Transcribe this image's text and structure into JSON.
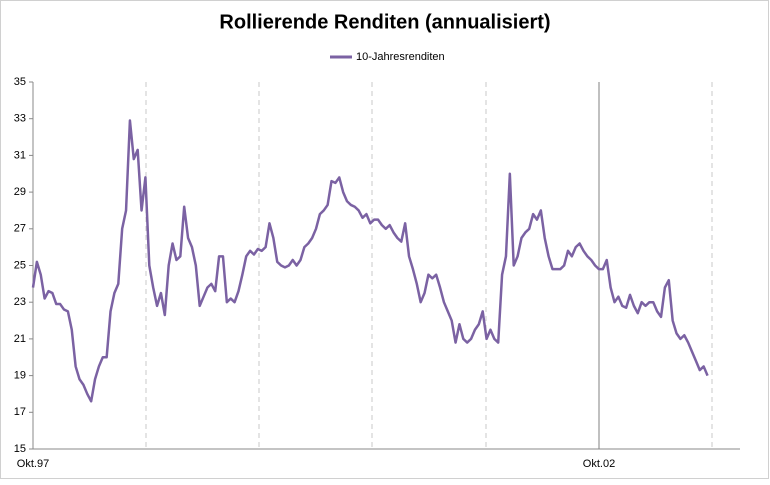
{
  "chart_data": {
    "type": "line",
    "title": "Rollierende Renditen (annualisiert)",
    "categories": [
      "Okt.97",
      null,
      null,
      null,
      null,
      null,
      null,
      null,
      null,
      null,
      null,
      null,
      null,
      null,
      null,
      null,
      null,
      null,
      null,
      null,
      null,
      null,
      null,
      null,
      null,
      null,
      null,
      null,
      null,
      null,
      null,
      null,
      null,
      null,
      null,
      null,
      null,
      null,
      null,
      null,
      null,
      null,
      null,
      null,
      null,
      null,
      null,
      null,
      null,
      null,
      null,
      null,
      null,
      null,
      null,
      null,
      null,
      null,
      null,
      null,
      null,
      null,
      null,
      null,
      null,
      null,
      null,
      null,
      null,
      null,
      null,
      null,
      null,
      null,
      null,
      null,
      null,
      null,
      null,
      null,
      null,
      null,
      null,
      null,
      null,
      null,
      null,
      null,
      null,
      null,
      null,
      null,
      null,
      null,
      null,
      null,
      null,
      null,
      null,
      null,
      null,
      null,
      null,
      null,
      null,
      null,
      null,
      null,
      null,
      null,
      null,
      null,
      null,
      null,
      null,
      null,
      null,
      null,
      null,
      null,
      null,
      null,
      null,
      null,
      null,
      null,
      null,
      null,
      null,
      null,
      null,
      null,
      null,
      null,
      null,
      null,
      null,
      null,
      null,
      null,
      null,
      null,
      null,
      null,
      null,
      null,
      "Okt.02",
      null,
      null,
      null,
      null,
      null,
      null,
      null,
      null,
      null,
      null,
      null,
      null,
      null,
      null,
      null,
      null,
      null,
      null,
      null,
      null,
      null,
      null,
      null,
      null,
      null,
      null,
      null,
      null
    ],
    "series": [
      {
        "name": "10-Jahresrenditen",
        "color": "#7b62a3",
        "values": [
          23.8,
          25.2,
          24.5,
          23.2,
          23.6,
          23.5,
          22.9,
          22.9,
          22.6,
          22.5,
          21.5,
          19.5,
          18.8,
          18.5,
          18.0,
          17.6,
          18.8,
          19.5,
          20.0,
          20.0,
          22.5,
          23.5,
          24.0,
          27.0,
          28.0,
          32.9,
          30.8,
          31.3,
          28.0,
          29.8,
          25.0,
          23.8,
          22.8,
          23.5,
          22.3,
          25.0,
          26.2,
          25.3,
          25.5,
          28.2,
          26.5,
          26.0,
          25.0,
          22.8,
          23.3,
          23.8,
          24.0,
          23.6,
          25.5,
          25.5,
          23.0,
          23.2,
          23.0,
          23.6,
          24.5,
          25.5,
          25.8,
          25.6,
          25.9,
          25.8,
          26.0,
          27.3,
          26.5,
          25.2,
          25.0,
          24.9,
          25.0,
          25.3,
          25.0,
          25.3,
          26.0,
          26.2,
          26.5,
          27.0,
          27.8,
          28.0,
          28.3,
          29.6,
          29.5,
          29.8,
          29.0,
          28.5,
          28.3,
          28.2,
          28.0,
          27.6,
          27.8,
          27.3,
          27.5,
          27.5,
          27.2,
          27.0,
          27.2,
          26.8,
          26.5,
          26.3,
          27.3,
          25.5,
          24.8,
          24.0,
          23.0,
          23.5,
          24.5,
          24.3,
          24.5,
          23.8,
          23.0,
          22.5,
          22.0,
          20.8,
          21.8,
          21.0,
          20.8,
          21.0,
          21.5,
          21.8,
          22.5,
          21.0,
          21.5,
          21.0,
          20.8,
          24.5,
          25.5,
          30.0,
          25.0,
          25.5,
          26.5,
          26.8,
          27.0,
          27.8,
          27.5,
          28.0,
          26.5,
          25.5,
          24.8,
          24.8,
          24.8,
          25.0,
          25.8,
          25.5,
          26.0,
          26.2,
          25.8,
          25.5,
          25.3,
          25.0,
          24.8,
          24.8,
          25.3,
          23.8,
          23.0,
          23.3,
          22.8,
          22.7,
          23.4,
          22.8,
          22.4,
          23.0,
          22.8,
          23.0,
          23.0,
          22.5,
          22.2,
          23.8,
          24.2,
          22.0,
          21.3,
          21.0,
          21.2,
          20.8,
          20.3,
          19.8,
          19.3,
          19.5,
          19.0
        ]
      }
    ],
    "ylim": [
      15,
      35
    ],
    "yticks": [
      15,
      17,
      19,
      21,
      23,
      25,
      27,
      29,
      31,
      33,
      35
    ]
  }
}
